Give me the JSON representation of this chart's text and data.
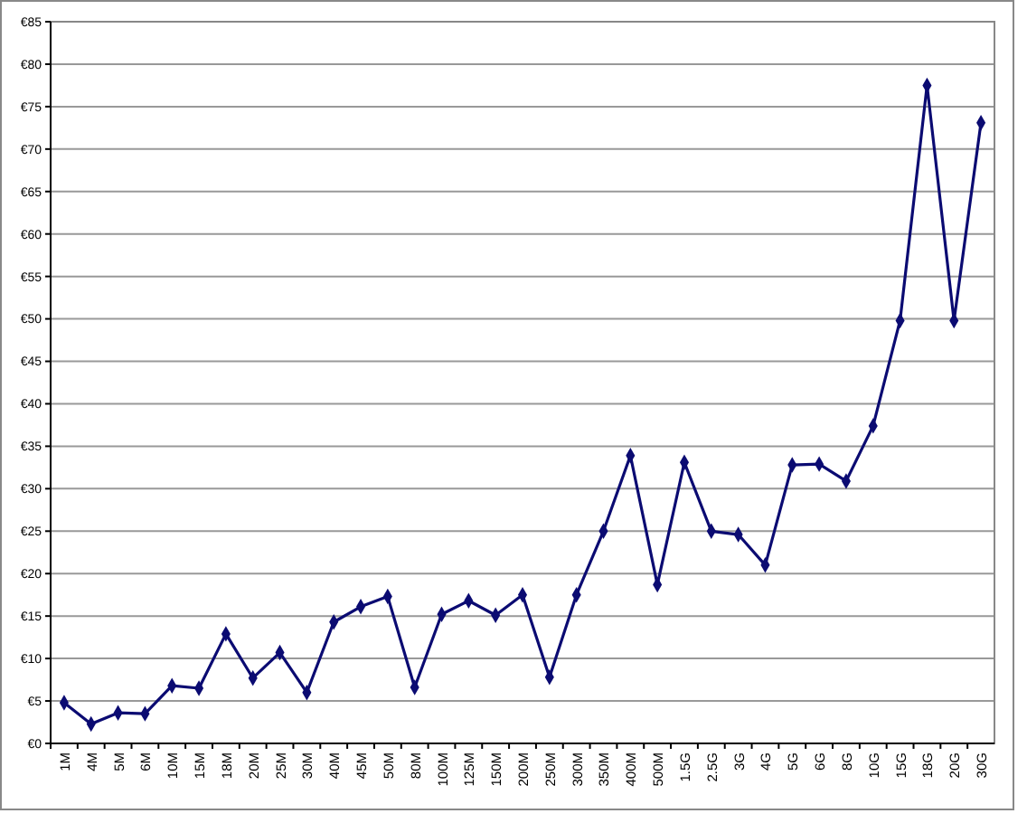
{
  "chart_data": {
    "type": "line",
    "categories": [
      "1M",
      "4M",
      "5M",
      "6M",
      "10M",
      "15M",
      "18M",
      "20M",
      "25M",
      "30M",
      "40M",
      "45M",
      "50M",
      "80M",
      "100M",
      "125M",
      "150M",
      "200M",
      "250M",
      "300M",
      "350M",
      "400M",
      "500M",
      "1.5G",
      "2.5G",
      "3G",
      "4G",
      "5G",
      "6G",
      "8G",
      "10G",
      "15G",
      "18G",
      "20G",
      "30G"
    ],
    "series": [
      {
        "color": "#0b0b72",
        "values": [
          4.8,
          2.3,
          3.6,
          3.5,
          6.8,
          6.5,
          12.9,
          7.7,
          10.7,
          6.0,
          14.3,
          16.1,
          17.3,
          6.6,
          15.2,
          16.8,
          15.1,
          17.5,
          7.8,
          17.5,
          25,
          33.9,
          18.7,
          33.1,
          25,
          24.6,
          21.0,
          32.8,
          32.9,
          30.9,
          37.4,
          49.8,
          77.5,
          49.8,
          73.1
        ]
      }
    ],
    "ylim": [
      0,
      85
    ],
    "yticks": [
      {
        "value": 0,
        "label": "€0"
      },
      {
        "value": 5,
        "label": "€5"
      },
      {
        "value": 10,
        "label": "€10"
      },
      {
        "value": 15,
        "label": "€15"
      },
      {
        "value": 20,
        "label": "€20"
      },
      {
        "value": 25,
        "label": "€25"
      },
      {
        "value": 30,
        "label": "€30"
      },
      {
        "value": 35,
        "label": "€35"
      },
      {
        "value": 40,
        "label": "€40"
      },
      {
        "value": 45,
        "label": "€45"
      },
      {
        "value": 50,
        "label": "€50"
      },
      {
        "value": 55,
        "label": "€55"
      },
      {
        "value": 60,
        "label": "€60"
      },
      {
        "value": 65,
        "label": "€65"
      },
      {
        "value": 70,
        "label": "€70"
      },
      {
        "value": 75,
        "label": "€75"
      },
      {
        "value": 80,
        "label": "€80"
      },
      {
        "value": 85,
        "label": "€85"
      }
    ],
    "grid": "y",
    "marker": "diamond",
    "line_style": "solid"
  }
}
